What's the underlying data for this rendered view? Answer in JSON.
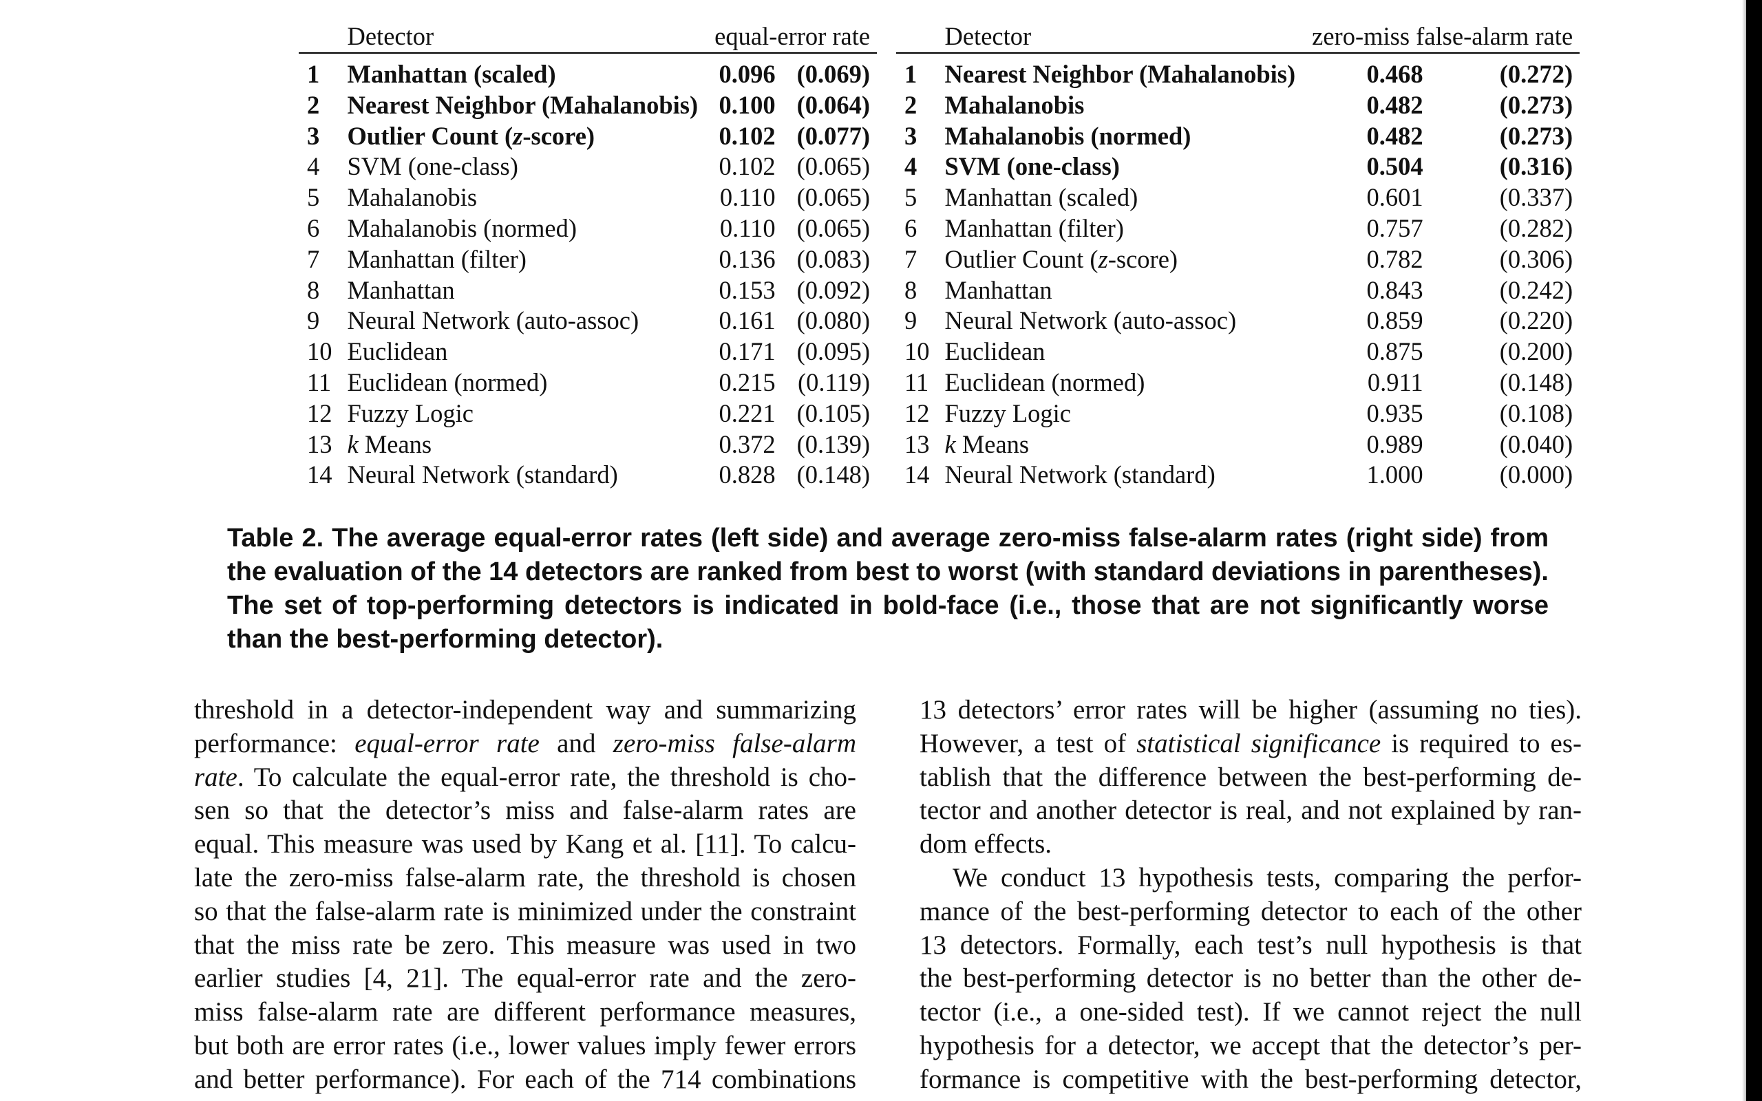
{
  "table": {
    "left": {
      "header": {
        "detector": "Detector",
        "metric": "equal-error rate"
      },
      "rows": [
        {
          "rank": "1",
          "name": "Manhattan (scaled)",
          "value": "0.096",
          "sd": "(0.069)",
          "top": true
        },
        {
          "rank": "2",
          "name": "Nearest Neighbor (Mahalanobis)",
          "value": "0.100",
          "sd": "(0.064)",
          "top": true
        },
        {
          "rank": "3",
          "name": "Outlier Count (z-score)",
          "value": "0.102",
          "sd": "(0.077)",
          "top": true
        },
        {
          "rank": "4",
          "name": "SVM (one-class)",
          "value": "0.102",
          "sd": "(0.065)",
          "top": false
        },
        {
          "rank": "5",
          "name": "Mahalanobis",
          "value": "0.110",
          "sd": "(0.065)",
          "top": false
        },
        {
          "rank": "6",
          "name": "Mahalanobis (normed)",
          "value": "0.110",
          "sd": "(0.065)",
          "top": false
        },
        {
          "rank": "7",
          "name": "Manhattan (filter)",
          "value": "0.136",
          "sd": "(0.083)",
          "top": false
        },
        {
          "rank": "8",
          "name": "Manhattan",
          "value": "0.153",
          "sd": "(0.092)",
          "top": false
        },
        {
          "rank": "9",
          "name": "Neural Network (auto-assoc)",
          "value": "0.161",
          "sd": "(0.080)",
          "top": false
        },
        {
          "rank": "10",
          "name": "Euclidean",
          "value": "0.171",
          "sd": "(0.095)",
          "top": false
        },
        {
          "rank": "11",
          "name": "Euclidean (normed)",
          "value": "0.215",
          "sd": "(0.119)",
          "top": false
        },
        {
          "rank": "12",
          "name": "Fuzzy Logic",
          "value": "0.221",
          "sd": "(0.105)",
          "top": false
        },
        {
          "rank": "13",
          "name": "k Means",
          "value": "0.372",
          "sd": "(0.139)",
          "top": false
        },
        {
          "rank": "14",
          "name": "Neural Network (standard)",
          "value": "0.828",
          "sd": "(0.148)",
          "top": false
        }
      ]
    },
    "right": {
      "header": {
        "detector": "Detector",
        "metric": "zero-miss false-alarm rate"
      },
      "rows": [
        {
          "rank": "1",
          "name": "Nearest Neighbor (Mahalanobis)",
          "value": "0.468",
          "sd": "(0.272)",
          "top": true
        },
        {
          "rank": "2",
          "name": "Mahalanobis",
          "value": "0.482",
          "sd": "(0.273)",
          "top": true
        },
        {
          "rank": "3",
          "name": "Mahalanobis (normed)",
          "value": "0.482",
          "sd": "(0.273)",
          "top": true
        },
        {
          "rank": "4",
          "name": "SVM (one-class)",
          "value": "0.504",
          "sd": "(0.316)",
          "top": true
        },
        {
          "rank": "5",
          "name": "Manhattan (scaled)",
          "value": "0.601",
          "sd": "(0.337)",
          "top": false
        },
        {
          "rank": "6",
          "name": "Manhattan (filter)",
          "value": "0.757",
          "sd": "(0.282)",
          "top": false
        },
        {
          "rank": "7",
          "name": "Outlier Count (z-score)",
          "value": "0.782",
          "sd": "(0.306)",
          "top": false
        },
        {
          "rank": "8",
          "name": "Manhattan",
          "value": "0.843",
          "sd": "(0.242)",
          "top": false
        },
        {
          "rank": "9",
          "name": "Neural Network (auto-assoc)",
          "value": "0.859",
          "sd": "(0.220)",
          "top": false
        },
        {
          "rank": "10",
          "name": "Euclidean",
          "value": "0.875",
          "sd": "(0.200)",
          "top": false
        },
        {
          "rank": "11",
          "name": "Euclidean (normed)",
          "value": "0.911",
          "sd": "(0.148)",
          "top": false
        },
        {
          "rank": "12",
          "name": "Fuzzy Logic",
          "value": "0.935",
          "sd": "(0.108)",
          "top": false
        },
        {
          "rank": "13",
          "name": "k Means",
          "value": "0.989",
          "sd": "(0.040)",
          "top": false
        },
        {
          "rank": "14",
          "name": "Neural Network (standard)",
          "value": "1.000",
          "sd": "(0.000)",
          "top": false
        }
      ]
    }
  },
  "caption": "Table 2. The average equal-error rates (left side) and average zero-miss false-alarm rates (right side) from the evaluation of the 14 detectors are ranked from best to worst (with standard deviations in parentheses). The set of top-performing detectors is indicated in bold-face (i.e., those that are not significantly worse than the best-performing detector).",
  "body": {
    "left_column": [
      "threshold in a detector-independent way and summarizing",
      "performance: <i>equal-error rate</i> and <i>zero-miss false-alarm</i>",
      "<i>rate</i>. To calculate the equal-error rate, the threshold is cho-",
      "sen so that the detector’s miss and false-alarm rates are",
      "equal. This measure was used by Kang et al. [11]. To calcu-",
      "late the zero-miss false-alarm rate, the threshold is chosen",
      "so that the false-alarm rate is minimized under the constraint",
      "that the miss rate be zero. This measure was used in two",
      "earlier studies [4, 21]. The equal-error rate and the zero-",
      "miss false-alarm rate are different performance measures,",
      "but both are error rates (i.e., lower values imply fewer errors",
      "and better performance). For each of the 714 combinations"
    ],
    "right_column": [
      "13 detectors’ error rates will be higher (assuming no ties).",
      "However, a test of <i>statistical significance</i> is required to es-",
      "tablish that the difference between the best-performing de-",
      "tector and another detector is real, and not explained by ran-",
      "dom effects.",
      "We conduct 13 hypothesis tests, comparing the perfor-",
      "mance of the best-performing detector to each of the other",
      "13 detectors. Formally, each test’s null hypothesis is that",
      "the best-performing detector is no better than the other de-",
      "tector (i.e., a one-sided test). If we cannot reject the null",
      "hypothesis for a detector, we accept that the detector’s per-",
      "formance is competitive with the best-performing detector,"
    ]
  }
}
